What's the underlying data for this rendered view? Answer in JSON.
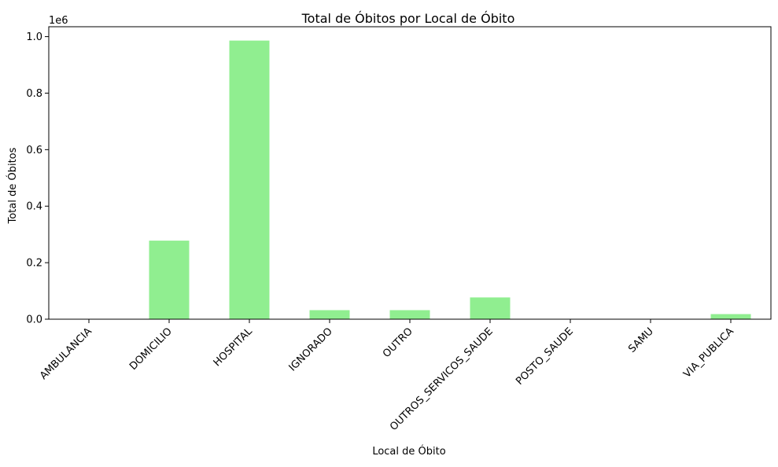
{
  "chart_data": {
    "type": "bar",
    "title": "Total de Óbitos por Local de Óbito",
    "xlabel": "Local de Óbito",
    "ylabel": "Total de Óbitos",
    "y_scale_label": "1e6",
    "categories": [
      "AMBULANCIA",
      "DOMICILIO",
      "HOSPITAL",
      "IGNORADO",
      "OUTRO",
      "OUTROS_SERVICOS_SAUDE",
      "POSTO_SAUDE",
      "SAMU",
      "VIA_PUBLICA"
    ],
    "values": [
      1000,
      278000,
      986000,
      32000,
      32000,
      77000,
      200,
      300,
      18000
    ],
    "yticks": [
      0,
      200000,
      400000,
      600000,
      800000,
      1000000
    ],
    "ytick_labels": [
      "0.0",
      "0.2",
      "0.4",
      "0.6",
      "0.8",
      "1.0"
    ],
    "ylim": [
      0,
      1035000
    ],
    "bar_color": "#90ee90",
    "grid": false,
    "legend": "none"
  }
}
